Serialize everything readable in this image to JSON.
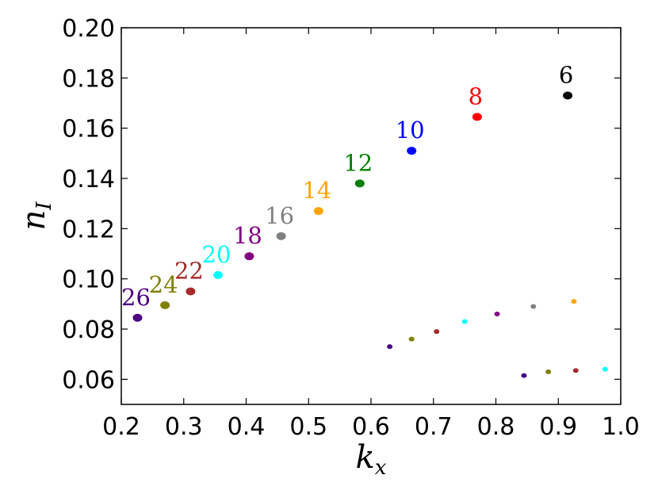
{
  "chart_data": {
    "type": "scatter",
    "title": "",
    "xlabel": "k",
    "xlabel_sub": "x",
    "ylabel": "n",
    "ylabel_sub": "I",
    "xlim": [
      0.2,
      1.0
    ],
    "ylim": [
      0.05,
      0.2
    ],
    "x_ticks": [
      "0.2",
      "0.3",
      "0.4",
      "0.5",
      "0.6",
      "0.7",
      "0.8",
      "0.9",
      "1.0"
    ],
    "y_ticks": [
      "0.06",
      "0.08",
      "0.10",
      "0.12",
      "0.14",
      "0.16",
      "0.18",
      "0.20"
    ],
    "grid": false,
    "legend": "none",
    "primary_series": [
      {
        "label": "6",
        "x": 0.915,
        "y": 0.173,
        "color": "#000000"
      },
      {
        "label": "8",
        "x": 0.77,
        "y": 0.1645,
        "color": "#ff0000"
      },
      {
        "label": "10",
        "x": 0.665,
        "y": 0.151,
        "color": "#0000ff"
      },
      {
        "label": "12",
        "x": 0.582,
        "y": 0.138,
        "color": "#008000"
      },
      {
        "label": "14",
        "x": 0.516,
        "y": 0.127,
        "color": "#ffa500"
      },
      {
        "label": "16",
        "x": 0.456,
        "y": 0.117,
        "color": "#808080"
      },
      {
        "label": "18",
        "x": 0.405,
        "y": 0.109,
        "color": "#800080"
      },
      {
        "label": "20",
        "x": 0.355,
        "y": 0.1015,
        "color": "#00ffff"
      },
      {
        "label": "22",
        "x": 0.311,
        "y": 0.095,
        "color": "#a52a2a"
      },
      {
        "label": "24",
        "x": 0.27,
        "y": 0.0895,
        "color": "#808000"
      },
      {
        "label": "26",
        "x": 0.226,
        "y": 0.0845,
        "color": "#4b0082"
      }
    ],
    "secondary_points": [
      {
        "x": 0.925,
        "y": 0.091,
        "color": "#ffa500"
      },
      {
        "x": 0.86,
        "y": 0.089,
        "color": "#808080"
      },
      {
        "x": 0.802,
        "y": 0.086,
        "color": "#800080"
      },
      {
        "x": 0.75,
        "y": 0.083,
        "color": "#00ffff"
      },
      {
        "x": 0.705,
        "y": 0.079,
        "color": "#a52a2a"
      },
      {
        "x": 0.665,
        "y": 0.076,
        "color": "#808000"
      },
      {
        "x": 0.63,
        "y": 0.073,
        "color": "#4b0082"
      },
      {
        "x": 0.975,
        "y": 0.064,
        "color": "#00ffff"
      },
      {
        "x": 0.928,
        "y": 0.0635,
        "color": "#a52a2a"
      },
      {
        "x": 0.884,
        "y": 0.063,
        "color": "#808000"
      },
      {
        "x": 0.845,
        "y": 0.0615,
        "color": "#4b0082"
      }
    ]
  }
}
